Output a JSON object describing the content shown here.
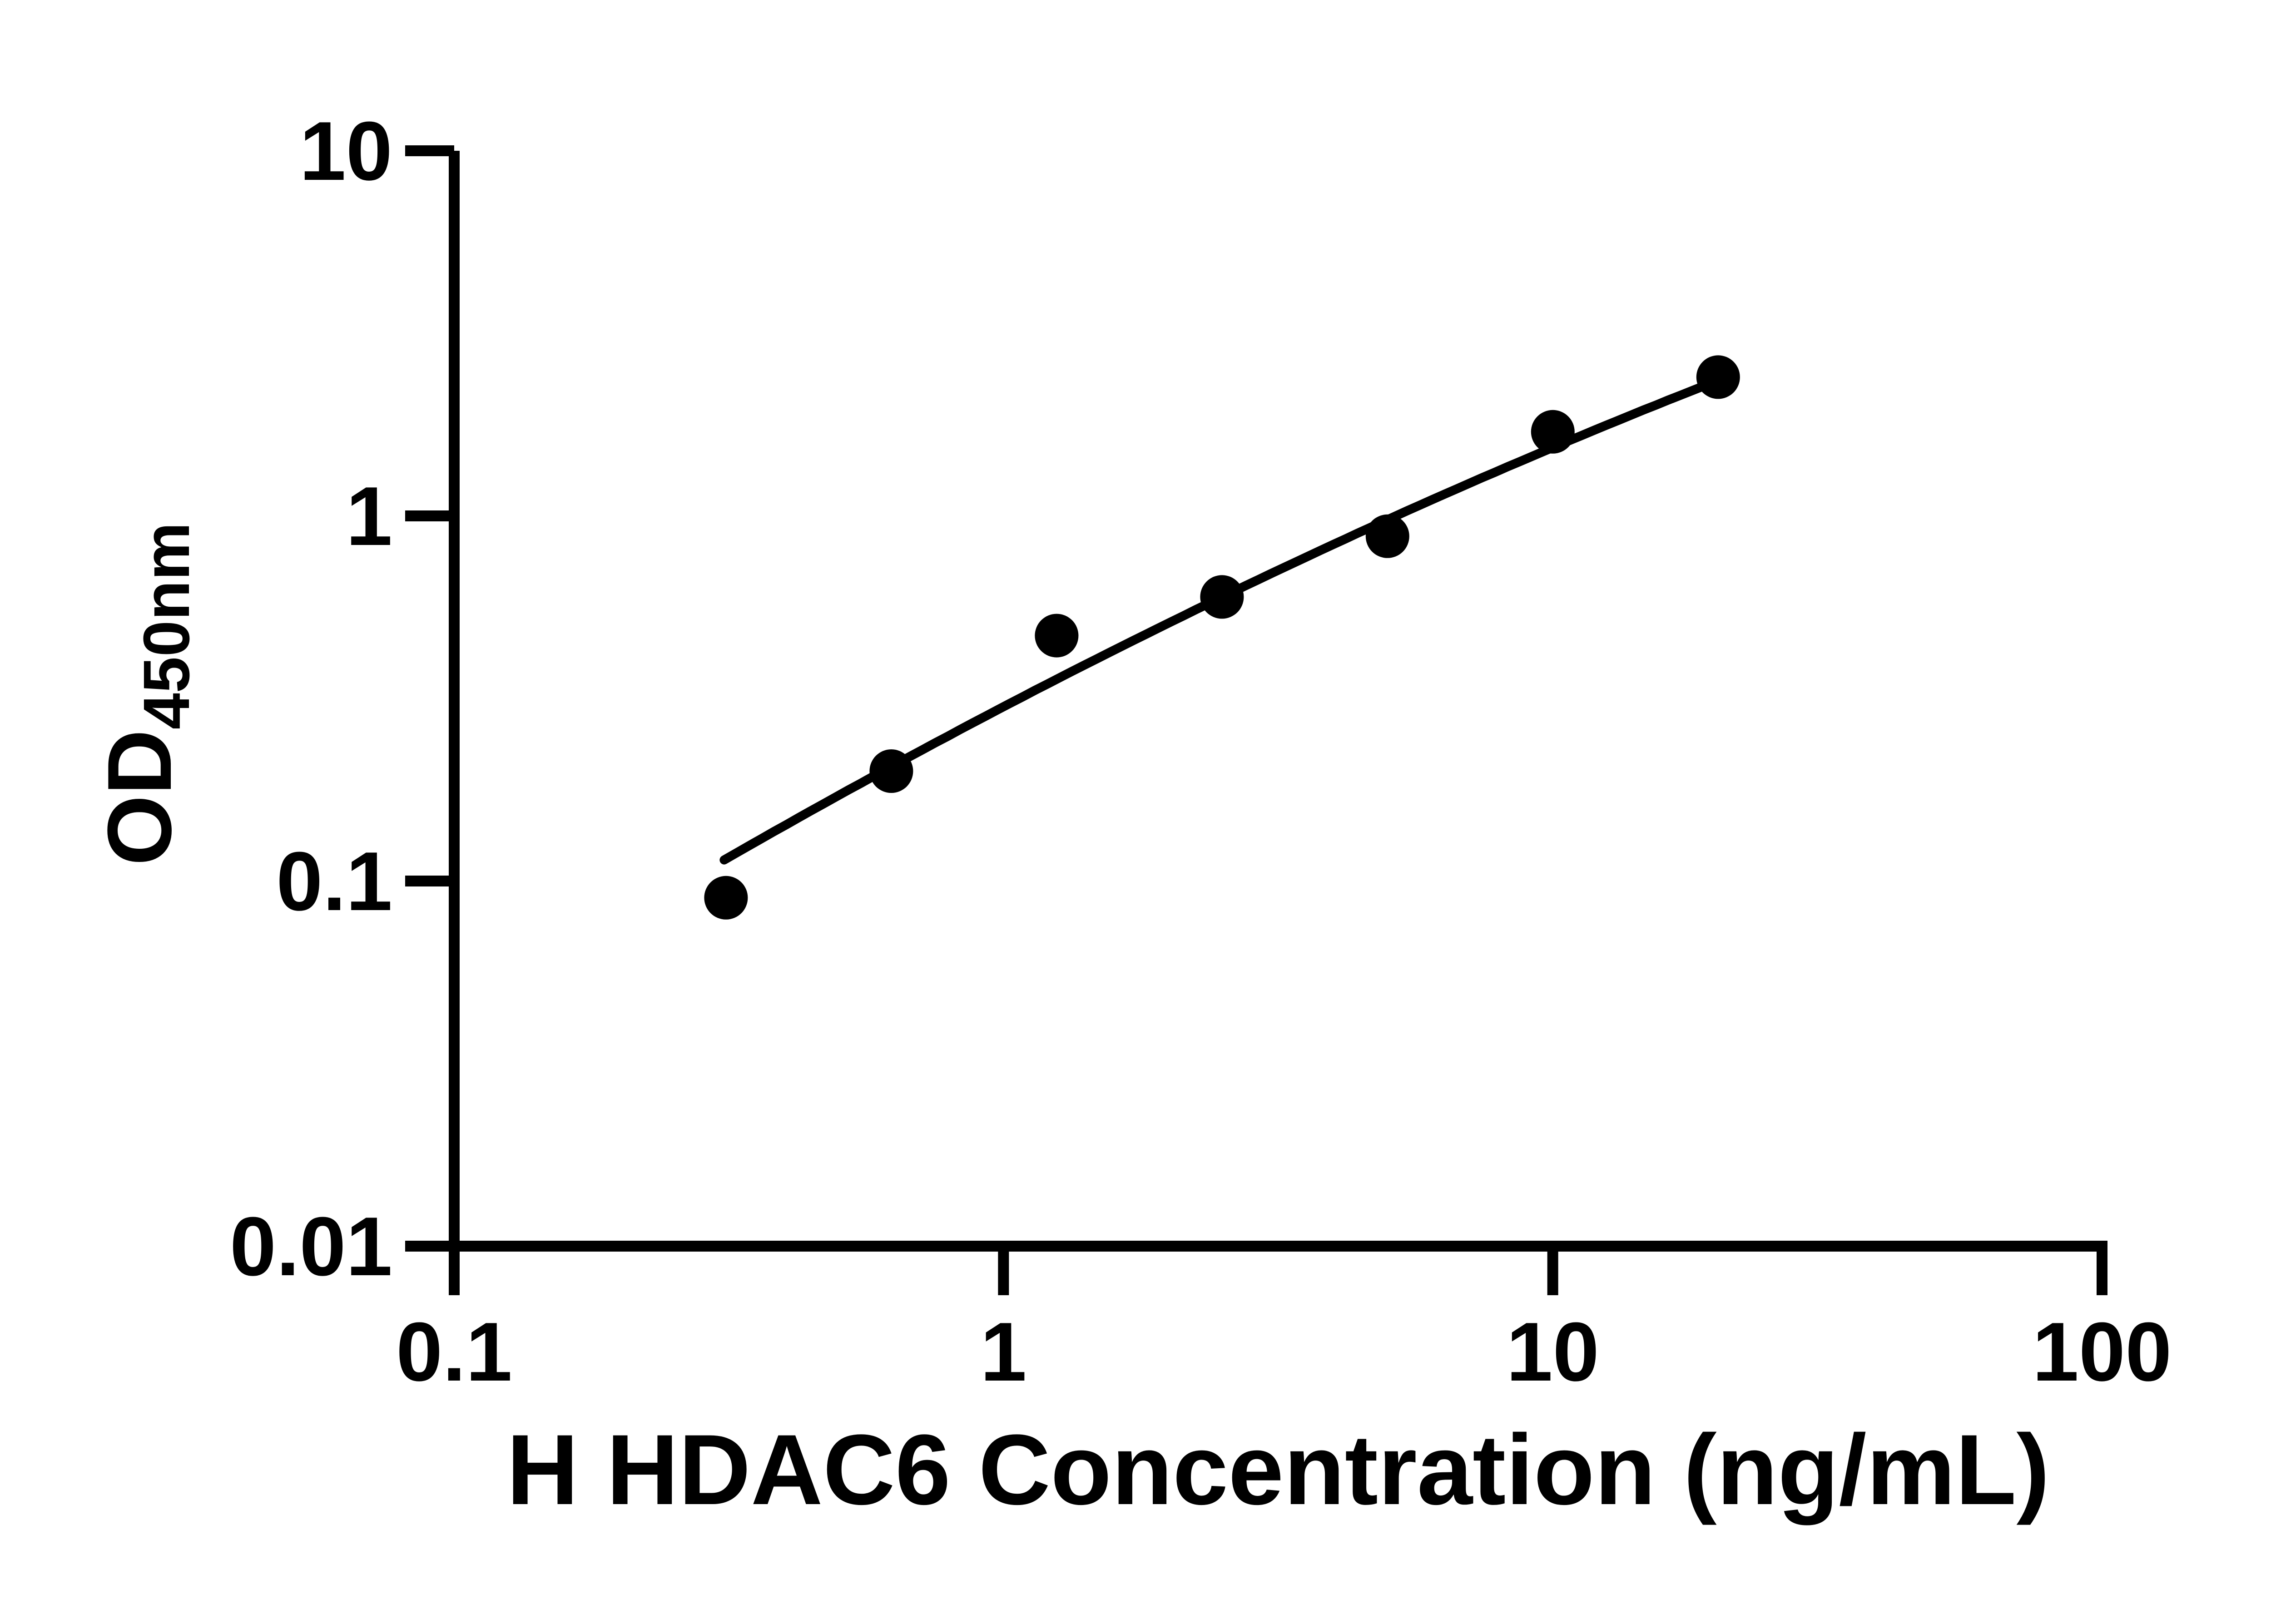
{
  "figure": {
    "background_color": "#ffffff",
    "ink_color": "#000000"
  },
  "chart_data": {
    "type": "scatter",
    "title": "",
    "xlabel": "H HDAC6 Concentration (ng/mL)",
    "ylabel": {
      "main": "OD",
      "subscript": "450nm"
    },
    "x_scale": "log10",
    "y_scale": "log10",
    "xlim": [
      0.1,
      100
    ],
    "ylim": [
      0.01,
      10
    ],
    "x_tick_values": [
      0.1,
      1,
      10,
      100
    ],
    "x_tick_labels": [
      "0.1",
      "1",
      "10",
      "100"
    ],
    "y_tick_values": [
      10,
      1,
      0.1,
      0.01
    ],
    "y_tick_labels": [
      "10",
      "1",
      "0.1",
      "0.01"
    ],
    "grid": false,
    "legend": null,
    "marker": {
      "shape": "filled-circle",
      "color": "#000000"
    },
    "series": [
      {
        "points": [
          {
            "x": 0.3125,
            "y": 0.09
          },
          {
            "x": 0.625,
            "y": 0.2
          },
          {
            "x": 1.25,
            "y": 0.47
          },
          {
            "x": 2.5,
            "y": 0.6
          },
          {
            "x": 5,
            "y": 0.88
          },
          {
            "x": 10,
            "y": 1.7
          },
          {
            "x": 20,
            "y": 2.4
          }
        ]
      }
    ],
    "fit_curve": {
      "type": "quadratic_in_log10",
      "coefficients": {
        "a": -0.5228,
        "b": 0.786,
        "c": -0.076
      },
      "x_start": 0.31,
      "x_end": 20,
      "color": "#000000"
    }
  }
}
